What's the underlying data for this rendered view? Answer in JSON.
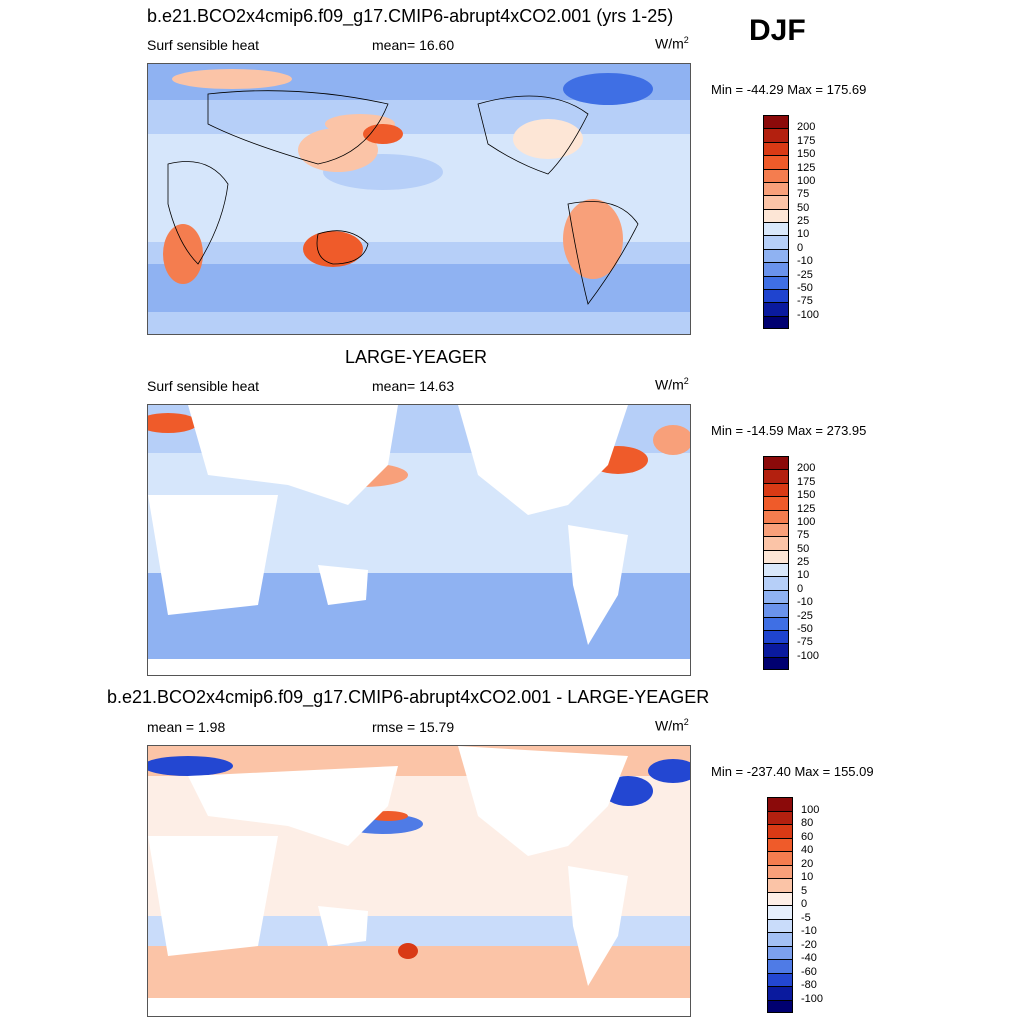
{
  "season": "DJF",
  "colors": {
    "land": "#ffffff",
    "coast": "#000000",
    "frame": "#555555",
    "ocean_light": "#d6e6fb",
    "ocean_mid": "#a9c6f5",
    "ocean_blue": "#7ea8ee",
    "neutral": "#fdf1ea",
    "warm_light": "#fbd4c0",
    "warm_mid": "#f7a482",
    "warm_strong": "#ee5f2e",
    "warm_dark": "#c8321a",
    "cold_strong": "#2a4fd8",
    "cold_dark": "#16239e"
  },
  "panels": [
    {
      "title": "b.e21.BCO2x4cmip6.f09_g17.CMIP6-abrupt4xCO2.001 (yrs 1-25)",
      "left_label": "Surf sensible heat",
      "center_label": "mean=  16.60",
      "units": "W/m",
      "units_sup": "2",
      "minmax": "Min = -44.29 Max = 175.69"
    },
    {
      "title": "LARGE-YEAGER",
      "left_label": "Surf sensible heat",
      "center_label": "mean=  14.63",
      "units": "W/m",
      "units_sup": "2",
      "minmax": "Min = -14.59 Max = 273.95"
    },
    {
      "title": "b.e21.BCO2x4cmip6.f09_g17.CMIP6-abrupt4xCO2.001 - LARGE-YEAGER",
      "left_label": "mean =   1.98",
      "center_label": "rmse =  15.79",
      "units": "W/m",
      "units_sup": "2",
      "minmax": "Min = -237.40 Max = 155.09"
    }
  ],
  "chart_data": [
    {
      "type": "heatmap",
      "title": "b.e21.BCO2x4cmip6.f09_g17.CMIP6-abrupt4xCO2.001 (yrs 1-25)",
      "variable": "Surf sensible heat",
      "units": "W/m2",
      "mean": 16.6,
      "min": -44.29,
      "max": 175.69,
      "colorbar_levels": [
        200,
        175,
        150,
        125,
        100,
        75,
        50,
        25,
        10,
        0,
        -10,
        -25,
        -50,
        -75,
        -100
      ],
      "colorbar_colors": [
        "#8b0a0a",
        "#b3200f",
        "#d93a15",
        "#ef5b2a",
        "#f47d4f",
        "#f8a07a",
        "#fbc4a7",
        "#fde6d6",
        "#d9e8fb",
        "#b6cff8",
        "#8fb2f2",
        "#6a93ec",
        "#3f6fe4",
        "#1f44cf",
        "#0a1a9e",
        "#000070"
      ]
    },
    {
      "type": "heatmap",
      "title": "LARGE-YEAGER",
      "variable": "Surf sensible heat",
      "units": "W/m2",
      "mean": 14.63,
      "min": -14.59,
      "max": 273.95,
      "colorbar_levels": [
        200,
        175,
        150,
        125,
        100,
        75,
        50,
        25,
        10,
        0,
        -10,
        -25,
        -50,
        -75,
        -100
      ],
      "colorbar_colors": [
        "#8b0a0a",
        "#b3200f",
        "#d93a15",
        "#ef5b2a",
        "#f47d4f",
        "#f8a07a",
        "#fbc4a7",
        "#fde6d6",
        "#d9e8fb",
        "#b6cff8",
        "#8fb2f2",
        "#6a93ec",
        "#3f6fe4",
        "#1f44cf",
        "#0a1a9e",
        "#000070"
      ]
    },
    {
      "type": "heatmap",
      "title": "b.e21.BCO2x4cmip6.f09_g17.CMIP6-abrupt4xCO2.001 - LARGE-YEAGER",
      "units": "W/m2",
      "mean": 1.98,
      "rmse": 15.79,
      "min": -237.4,
      "max": 155.09,
      "colorbar_levels": [
        100,
        80,
        60,
        40,
        20,
        10,
        5,
        0,
        -5,
        -10,
        -20,
        -40,
        -60,
        -80,
        -100
      ],
      "colorbar_colors": [
        "#8b0a0a",
        "#b3200f",
        "#d93a15",
        "#ef5b2a",
        "#f47d4f",
        "#f8a07a",
        "#fbc4a7",
        "#fdeee6",
        "#e6effc",
        "#c9dcfa",
        "#a3c0f4",
        "#7ca0ee",
        "#4f7be6",
        "#2347d2",
        "#0a1a9e",
        "#000070"
      ]
    }
  ]
}
